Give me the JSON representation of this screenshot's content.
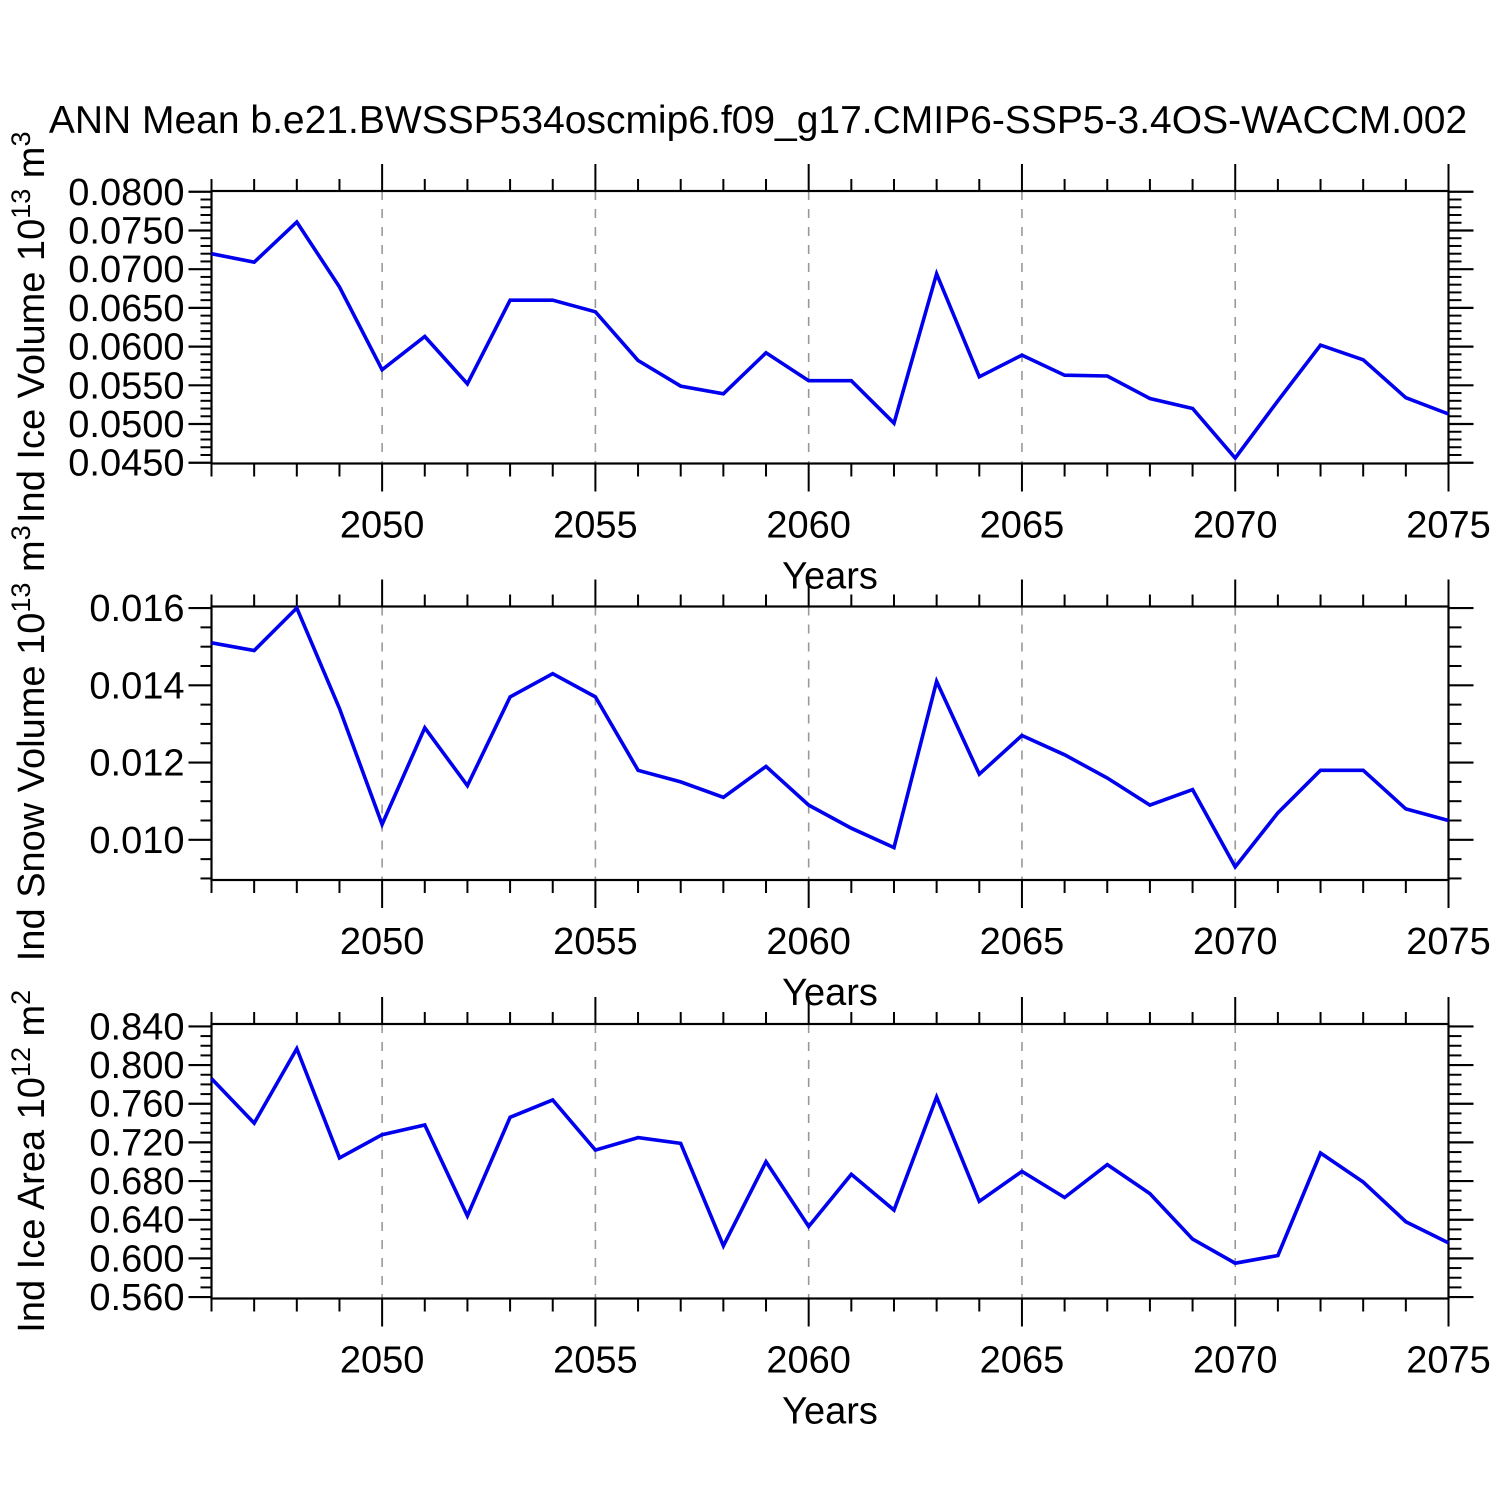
{
  "title": "ANN Mean b.e21.BWSSP534oscmip6.f09_g17.CMIP6-SSP5-3.4OS-WACCM.002",
  "colors": {
    "line": "#0000ee",
    "frame": "#000000",
    "grid": "#999999",
    "text": "#000000",
    "background": "#ffffff"
  },
  "chart_data": [
    {
      "type": "line",
      "title": "ANN Mean b.e21.BWSSP534oscmip6.f09_g17.CMIP6-SSP5-3.4OS-WACCM.002",
      "name": "ind-ice-volume",
      "ylabel": "Ind Ice Volume 10^13 m^3",
      "ylabel_parts": [
        [
          "Ind Ice Volume 10",
          false
        ],
        [
          "13",
          true
        ],
        [
          " m",
          false
        ],
        [
          "3",
          true
        ]
      ],
      "xlabel": "Years",
      "xlim": [
        2046,
        2075
      ],
      "ylim": [
        0.0449,
        0.0801
      ],
      "x": [
        2046,
        2047,
        2048,
        2049,
        2050,
        2051,
        2052,
        2053,
        2054,
        2055,
        2056,
        2057,
        2058,
        2059,
        2060,
        2061,
        2062,
        2063,
        2064,
        2065,
        2066,
        2067,
        2068,
        2069,
        2070,
        2071,
        2072,
        2073,
        2074,
        2075
      ],
      "values": [
        0.072,
        0.0709,
        0.0761,
        0.0677,
        0.057,
        0.0613,
        0.0552,
        0.066,
        0.066,
        0.0645,
        0.0582,
        0.0549,
        0.0539,
        0.0592,
        0.0556,
        0.0556,
        0.0501,
        0.0694,
        0.0561,
        0.0589,
        0.0563,
        0.0562,
        0.0533,
        0.052,
        0.0456,
        0.053,
        0.0602,
        0.0583,
        0.0534,
        0.0513
      ],
      "ytick_values": [
        0.045,
        0.05,
        0.055,
        0.06,
        0.065,
        0.07,
        0.075,
        0.08
      ],
      "ytick_labels": [
        "0.0450",
        "0.0500",
        "0.0550",
        "0.0600",
        "0.0650",
        "0.0700",
        "0.0750",
        "0.0800"
      ],
      "yminor_start": 0.045,
      "yminor_step": 0.001,
      "xtick_values": [
        2050,
        2055,
        2060,
        2065,
        2070,
        2075
      ],
      "xtick_labels": [
        "2050",
        "2055",
        "2060",
        "2065",
        "2070",
        "2075"
      ],
      "xminor_step": 1,
      "grid_x": [
        2050,
        2055,
        2060,
        2065,
        2070
      ],
      "grid_style": "vertical-dashed",
      "legend": "none"
    },
    {
      "type": "line",
      "title": "",
      "name": "ind-snow-volume",
      "ylabel": "Ind Snow Volume 10^13 m^3",
      "ylabel_parts": [
        [
          "Ind Snow Volume 10",
          false
        ],
        [
          "13",
          true
        ],
        [
          " m",
          false
        ],
        [
          "3",
          true
        ]
      ],
      "xlabel": "Years",
      "xlim": [
        2046,
        2075
      ],
      "ylim": [
        0.00896,
        0.01604
      ],
      "x": [
        2046,
        2047,
        2048,
        2049,
        2050,
        2051,
        2052,
        2053,
        2054,
        2055,
        2056,
        2057,
        2058,
        2059,
        2060,
        2061,
        2062,
        2063,
        2064,
        2065,
        2066,
        2067,
        2068,
        2069,
        2070,
        2071,
        2072,
        2073,
        2074,
        2075
      ],
      "values": [
        0.0151,
        0.0149,
        0.016,
        0.0134,
        0.0104,
        0.0129,
        0.0114,
        0.0137,
        0.0143,
        0.0137,
        0.0118,
        0.0115,
        0.0111,
        0.0119,
        0.0109,
        0.0103,
        0.0098,
        0.0141,
        0.0117,
        0.0127,
        0.0122,
        0.0116,
        0.0109,
        0.0113,
        0.0093,
        0.0107,
        0.0118,
        0.0118,
        0.0108,
        0.0105
      ],
      "ytick_values": [
        0.01,
        0.012,
        0.014,
        0.016
      ],
      "ytick_labels": [
        "0.010",
        "0.012",
        "0.014",
        "0.016"
      ],
      "yminor_start": 0.009,
      "yminor_step": 0.0005,
      "xtick_values": [
        2050,
        2055,
        2060,
        2065,
        2070,
        2075
      ],
      "xtick_labels": [
        "2050",
        "2055",
        "2060",
        "2065",
        "2070",
        "2075"
      ],
      "xminor_step": 1,
      "grid_x": [
        2050,
        2055,
        2060,
        2065,
        2070
      ],
      "grid_style": "vertical-dashed",
      "legend": "none"
    },
    {
      "type": "line",
      "title": "",
      "name": "ind-ice-area",
      "ylabel": "Ind Ice Area 10^12 m^2",
      "ylabel_parts": [
        [
          "Ind Ice Area 10",
          false
        ],
        [
          "12",
          true
        ],
        [
          " m",
          false
        ],
        [
          "2",
          true
        ]
      ],
      "xlabel": "Years",
      "xlim": [
        2046,
        2075
      ],
      "ylim": [
        0.5585,
        0.8425
      ],
      "x": [
        2046,
        2047,
        2048,
        2049,
        2050,
        2051,
        2052,
        2053,
        2054,
        2055,
        2056,
        2057,
        2058,
        2059,
        2060,
        2061,
        2062,
        2063,
        2064,
        2065,
        2066,
        2067,
        2068,
        2069,
        2070,
        2071,
        2072,
        2073,
        2074,
        2075
      ],
      "values": [
        0.786,
        0.74,
        0.817,
        0.704,
        0.728,
        0.738,
        0.644,
        0.746,
        0.764,
        0.712,
        0.725,
        0.719,
        0.613,
        0.7,
        0.633,
        0.687,
        0.65,
        0.767,
        0.659,
        0.69,
        0.663,
        0.697,
        0.667,
        0.62,
        0.595,
        0.603,
        0.709,
        0.679,
        0.638,
        0.616
      ],
      "ytick_values": [
        0.56,
        0.6,
        0.64,
        0.68,
        0.72,
        0.76,
        0.8,
        0.84
      ],
      "ytick_labels": [
        "0.560",
        "0.600",
        "0.640",
        "0.680",
        "0.720",
        "0.760",
        "0.800",
        "0.840"
      ],
      "yminor_start": 0.56,
      "yminor_step": 0.01,
      "xtick_values": [
        2050,
        2055,
        2060,
        2065,
        2070,
        2075
      ],
      "xtick_labels": [
        "2050",
        "2055",
        "2060",
        "2065",
        "2070",
        "2075"
      ],
      "xminor_step": 1,
      "grid_x": [
        2050,
        2055,
        2060,
        2065,
        2070
      ],
      "grid_style": "vertical-dashed",
      "legend": "none"
    }
  ]
}
